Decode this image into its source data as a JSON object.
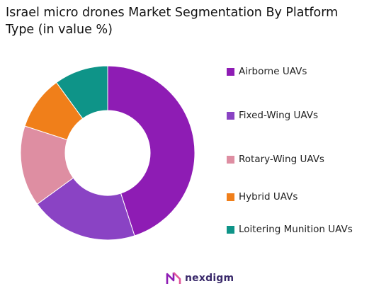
{
  "chart_data": {
    "type": "donut",
    "title_line1": "Israel micro drones Market Segmentation By Platform",
    "title_line2": "Type (in value %)",
    "categories": [
      "Airborne UAVs",
      "Fixed-Wing UAVs",
      "Rotary-Wing UAVs",
      "Hybrid UAVs",
      "Loitering Munition UAVs"
    ],
    "values": [
      45,
      20,
      15,
      10,
      10
    ],
    "colors": [
      "#8e1cb4",
      "#8a43c4",
      "#de8ea2",
      "#f07f1a",
      "#0e9488"
    ],
    "legend_position": "right"
  },
  "branding": {
    "logo_text": "nexdigm"
  }
}
